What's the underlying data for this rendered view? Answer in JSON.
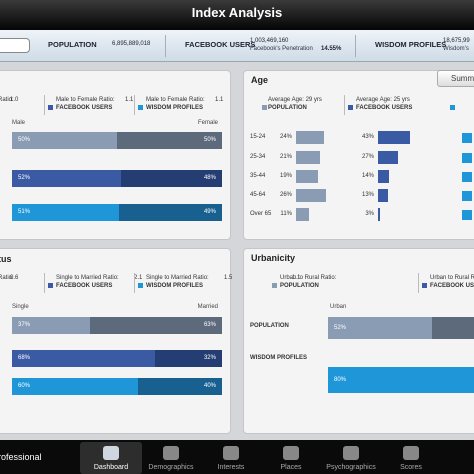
{
  "header": {
    "title": "Index Analysis"
  },
  "stats": {
    "population": {
      "label": "POPULATION",
      "value": "6,895,889,018"
    },
    "facebook": {
      "label": "FACEBOOK USERS",
      "value": "1,003,469,160",
      "sub_label": "Facebook's Penetration",
      "sub_value": "14.55%"
    },
    "wisdom": {
      "label": "WISDOM PROFILES",
      "value": "18,675,99",
      "sub_label": "Wisdom's"
    }
  },
  "gender": {
    "legend": [
      {
        "text": "Ratio:",
        "value": "1.0"
      },
      {
        "text": "Male to Female Ratio:",
        "value": "1.1",
        "group": "FACEBOOK USERS"
      },
      {
        "text": "Male to Female Ratio:",
        "value": "1.1",
        "group": "WISDOM PROFILES"
      }
    ],
    "left_label": "Male",
    "right_label": "Female",
    "bars": [
      {
        "values": [
          50,
          50
        ],
        "value_labels": [
          "50%",
          "50%"
        ]
      },
      {
        "values": [
          52,
          48
        ],
        "value_labels": [
          "52%",
          "48%"
        ]
      },
      {
        "values": [
          51,
          49
        ],
        "value_labels": [
          "51%",
          "49%"
        ]
      }
    ]
  },
  "age": {
    "title": "Age",
    "button": "Summ",
    "legend": [
      {
        "text": "Average Age: 29 yrs",
        "group": "POPULATION"
      },
      {
        "text": "Average Age: 25 yrs",
        "group": "FACEBOOK USERS"
      }
    ],
    "rows": [
      {
        "label": "15-24",
        "values": [
          24,
          43
        ],
        "value_labels": [
          "24%",
          "43%"
        ]
      },
      {
        "label": "25-34",
        "values": [
          21,
          27
        ],
        "value_labels": [
          "21%",
          "27%"
        ]
      },
      {
        "label": "35-44",
        "values": [
          19,
          14
        ],
        "value_labels": [
          "19%",
          "14%"
        ]
      },
      {
        "label": "45-64",
        "values": [
          26,
          13
        ],
        "value_labels": [
          "26%",
          "13%"
        ]
      },
      {
        "label": "Over 65",
        "values": [
          11,
          3
        ],
        "value_labels": [
          "11%",
          "3%"
        ]
      }
    ]
  },
  "marital": {
    "title": "tus",
    "legend": [
      {
        "text": "Ratio:",
        "value": "0.6"
      },
      {
        "text": "Single to Married Ratio:",
        "value": "2.1",
        "group": "FACEBOOK USERS"
      },
      {
        "text": "Single to Married Ratio:",
        "value": "1.5",
        "group": "WISDOM PROFILES"
      }
    ],
    "left_label": "Single",
    "right_label": "Married",
    "bars": [
      {
        "values": [
          37,
          63
        ],
        "value_labels": [
          "37%",
          "63%"
        ]
      },
      {
        "values": [
          68,
          32
        ],
        "value_labels": [
          "68%",
          "32%"
        ]
      },
      {
        "values": [
          60,
          40
        ],
        "value_labels": [
          "60%",
          "40%"
        ]
      }
    ]
  },
  "urbanicity": {
    "title": "Urbanicity",
    "legend": [
      {
        "text": "Urban to Rural Ratio:",
        "value": "1.1",
        "group": "POPULATION"
      },
      {
        "text": "Urban to Rural Ratio:",
        "group": "FACEBOOK USERS"
      }
    ],
    "left_label": "Urban",
    "rows": [
      {
        "label": "POPULATION",
        "value": 52,
        "value_label": "52%"
      },
      {
        "label": "WISDOM PROFILES",
        "value": 80,
        "value_label": "80%"
      }
    ]
  },
  "nav": {
    "brand": "rofessional",
    "tabs": [
      "Dashboard",
      "Demographics",
      "Interests",
      "Places",
      "Psychographics",
      "Scores"
    ]
  }
}
